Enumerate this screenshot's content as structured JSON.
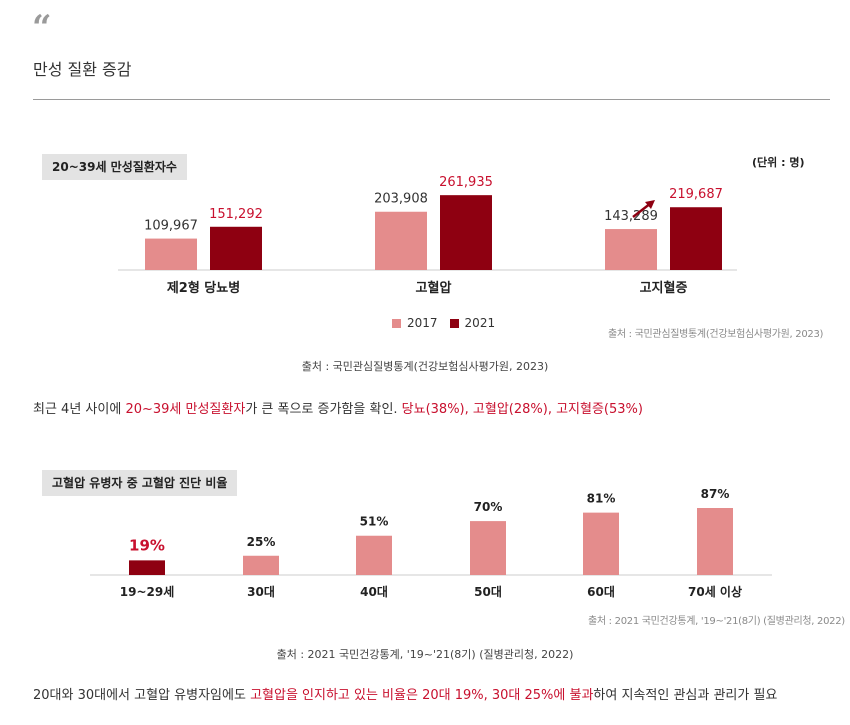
{
  "header": {
    "quote_mark": "“",
    "title": "만성 질환 증감"
  },
  "chart1": {
    "tag": "20~39세 만성질환자수",
    "unit": "(단위 : 명)",
    "legend": [
      "2017",
      "2021"
    ],
    "source": "출처 : 국민관심질병통계(건강보험심사평가원, 2023)"
  },
  "caption1": "출처 : 국민관심질병통계(건강보험심사평가원, 2023)",
  "para1": {
    "p1": "최근 4년 사이에 ",
    "r1": "20~39세 만성질환자",
    "p2": "가 큰 폭으로 증가함을 확인. ",
    "r2": "당뇨(38%), 고혈압(28%), 고지혈증(53%)"
  },
  "chart2": {
    "tag": "고혈압 유병자 중 고혈압 진단 비율",
    "source": "출처 : 2021 국민건강통계, '19~'21(8기) (질병관리청, 2022)"
  },
  "caption2": "출처 : 2021 국민건강통계, '19~'21(8기) (질병관리청, 2022)",
  "para2": {
    "p1": "20대와 30대에서 고혈압 유병자임에도 ",
    "r1": "고혈압을 인지하고 있는 비율은 20대 19%, 30대 25%에 불과",
    "p2": "하여 지속적인 관심과 관리가 필요"
  },
  "colors": {
    "light": "#e48c8c",
    "dark": "#8e0011",
    "red_text": "#c8102e"
  },
  "chart_data": [
    {
      "type": "bar",
      "title": "20~39세 만성질환자수",
      "categories": [
        "제2형 당뇨병",
        "고혈압",
        "고지혈증"
      ],
      "series": [
        {
          "name": "2017",
          "values": [
            109967,
            203908,
            143289
          ],
          "labels": [
            "109,967",
            "203,908",
            "143,289"
          ]
        },
        {
          "name": "2021",
          "values": [
            151292,
            261935,
            219687
          ],
          "labels": [
            "151,292",
            "261,935",
            "219,687"
          ]
        }
      ],
      "ylim": [
        0,
        280000
      ],
      "legend": "bottom-center",
      "grid": false
    },
    {
      "type": "bar",
      "title": "고혈압 유병자 중 고혈압 진단 비율",
      "categories": [
        "19~29세",
        "30대",
        "40대",
        "50대",
        "60대",
        "70세 이상"
      ],
      "values": [
        19,
        25,
        51,
        70,
        81,
        87
      ],
      "labels": [
        "19%",
        "25%",
        "51%",
        "70%",
        "81%",
        "87%"
      ],
      "ylim": [
        0,
        100
      ],
      "grid": false
    }
  ]
}
